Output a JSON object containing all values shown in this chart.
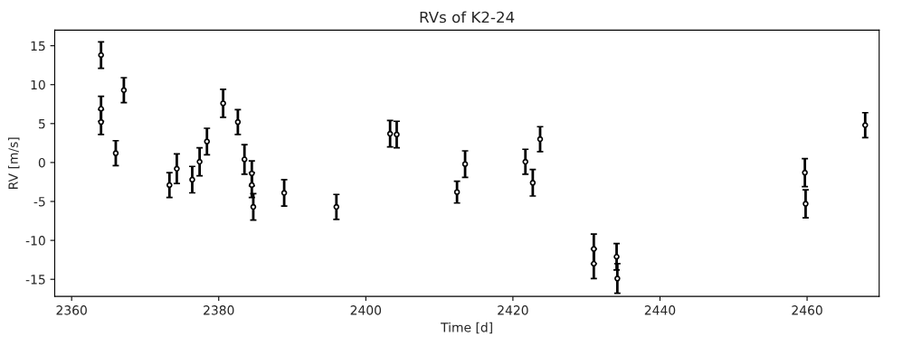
{
  "chart_data": {
    "type": "scatter",
    "title": "RVs of K2-24",
    "xlabel": "Time [d]",
    "ylabel": "RV [m/s]",
    "x": [
      2364,
      2364,
      2364,
      2366,
      2367.1,
      2373.3,
      2374.3,
      2376.4,
      2377.4,
      2378.4,
      2380.6,
      2382.6,
      2383.5,
      2384.5,
      2384.5,
      2384.7,
      2388.9,
      2396.0,
      2403.3,
      2404.2,
      2412.4,
      2413.5,
      2421.7,
      2422.7,
      2423.7,
      2431.0,
      2431.0,
      2434.1,
      2434.2,
      2459.7,
      2459.8,
      2467.9
    ],
    "values": [
      13.8,
      6.9,
      5.2,
      1.2,
      9.3,
      -2.9,
      -0.8,
      -2.2,
      0.1,
      2.7,
      7.6,
      5.2,
      0.4,
      -1.4,
      -2.9,
      -5.7,
      -3.9,
      -5.7,
      3.7,
      3.6,
      -3.8,
      -0.2,
      0.1,
      -2.6,
      3.0,
      -11.1,
      -13.0,
      -12.1,
      -14.9,
      -1.3,
      -5.3,
      4.8
    ],
    "errors": [
      1.7,
      1.6,
      1.6,
      1.6,
      1.6,
      1.6,
      1.9,
      1.7,
      1.8,
      1.7,
      1.8,
      1.6,
      1.9,
      1.6,
      1.6,
      1.7,
      1.7,
      1.6,
      1.7,
      1.7,
      1.4,
      1.7,
      1.6,
      1.7,
      1.6,
      1.9,
      1.9,
      1.7,
      1.9,
      1.8,
      1.8,
      1.6
    ],
    "color": "#000000",
    "marker": "circle",
    "xlim": [
      2357.7,
      2469.8
    ],
    "ylim": [
      -17.2,
      17.0
    ],
    "xticks": [
      2360,
      2380,
      2400,
      2420,
      2440,
      2460
    ],
    "yticks": [
      -15,
      -10,
      -5,
      0,
      5,
      10,
      15
    ],
    "grid": false
  }
}
